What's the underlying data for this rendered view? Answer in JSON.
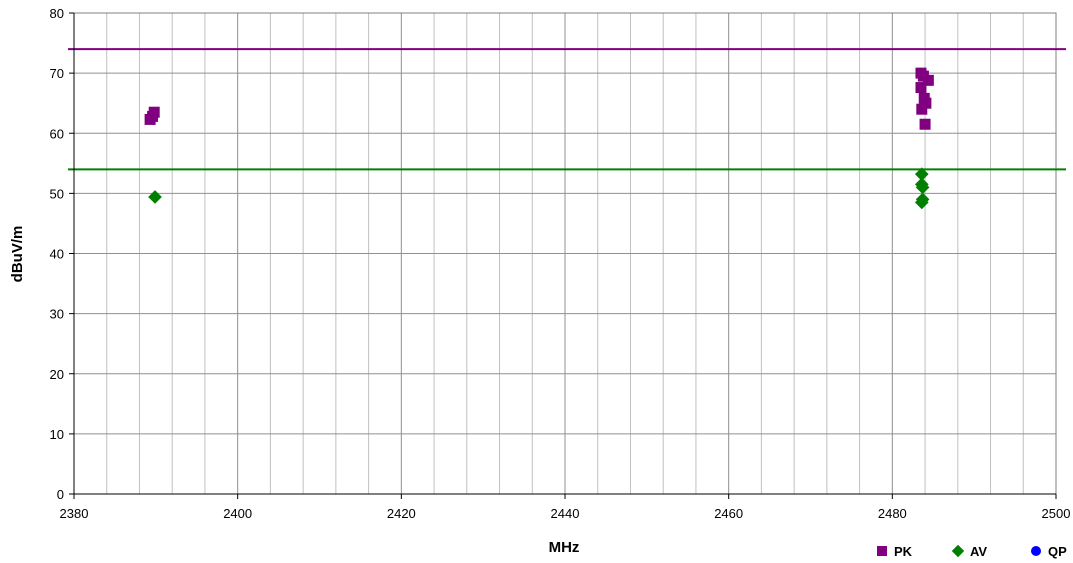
{
  "chart_data": {
    "type": "scatter",
    "xlabel": "MHz",
    "ylabel": "dBuV/m",
    "xlim": [
      2380,
      2500
    ],
    "ylim": [
      0,
      80
    ],
    "x_ticks": [
      2380,
      2400,
      2420,
      2440,
      2460,
      2480,
      2500
    ],
    "y_ticks": [
      0,
      10,
      20,
      30,
      40,
      50,
      60,
      70,
      80
    ],
    "x_minor_step": 4,
    "grid": true,
    "legend_position": "bottom-right",
    "series": [
      {
        "name": "PK",
        "marker": "square",
        "color": "#800080",
        "points": [
          [
            2389.3,
            62.3
          ],
          [
            2389.6,
            62.8
          ],
          [
            2389.8,
            63.5
          ],
          [
            2483.5,
            70.0
          ],
          [
            2483.5,
            67.6
          ],
          [
            2483.6,
            64.0
          ],
          [
            2483.8,
            69.5
          ],
          [
            2483.9,
            65.8
          ],
          [
            2484.0,
            61.5
          ],
          [
            2484.1,
            65.0
          ],
          [
            2484.4,
            68.8
          ]
        ]
      },
      {
        "name": "AV",
        "marker": "diamond",
        "color": "#008000",
        "points": [
          [
            2389.9,
            49.4
          ],
          [
            2483.6,
            53.2
          ],
          [
            2483.6,
            51.5
          ],
          [
            2483.7,
            51.0
          ],
          [
            2483.6,
            48.5
          ],
          [
            2483.7,
            49.0
          ]
        ]
      },
      {
        "name": "QP",
        "marker": "circle",
        "color": "#0000ff",
        "points": []
      }
    ],
    "reference_lines": [
      {
        "value": 74,
        "color": "#800080"
      },
      {
        "value": 54,
        "color": "#008000"
      }
    ]
  }
}
